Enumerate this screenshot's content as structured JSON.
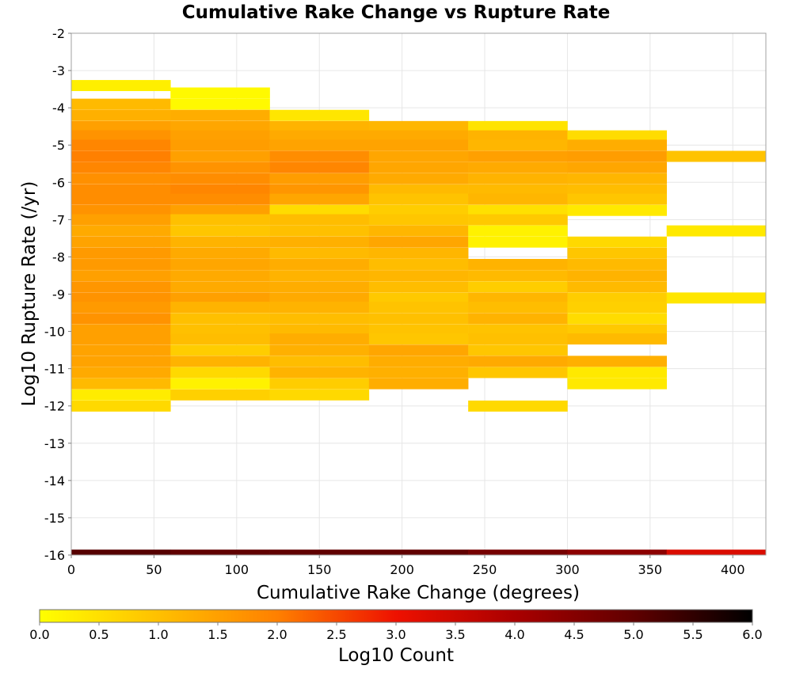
{
  "chart_data": {
    "type": "heatmap",
    "title": "Cumulative Rake Change vs Rupture Rate",
    "xlabel": "Cumulative Rake Change (degrees)",
    "ylabel": "Log10 Rupture Rate (/yr)",
    "xlim": [
      0,
      420
    ],
    "ylim": [
      -16,
      -2
    ],
    "x_ticks": [
      "0",
      "50",
      "100",
      "150",
      "200",
      "250",
      "300",
      "350",
      "400"
    ],
    "y_ticks": [
      "-2",
      "-3",
      "-4",
      "-5",
      "-6",
      "-7",
      "-8",
      "-9",
      "-10",
      "-11",
      "-12",
      "-13",
      "-14",
      "-15",
      "-16"
    ],
    "x_bin_width": 60,
    "y_bin_height": 0.29,
    "colorbar": {
      "label": "Log10 Count",
      "range": [
        0,
        6
      ],
      "ticks": [
        "0.0",
        "0.5",
        "1.0",
        "1.5",
        "2.0",
        "2.5",
        "3.0",
        "3.5",
        "4.0",
        "4.5",
        "5.0",
        "5.5",
        "6.0"
      ],
      "stops": [
        {
          "v": 0.0,
          "color": "#ffff00"
        },
        {
          "v": 1.0,
          "color": "#ffc000"
        },
        {
          "v": 2.0,
          "color": "#ff8000"
        },
        {
          "v": 3.0,
          "color": "#ee1100"
        },
        {
          "v": 4.0,
          "color": "#aa0000"
        },
        {
          "v": 5.0,
          "color": "#600000"
        },
        {
          "v": 6.0,
          "color": "#000000"
        }
      ]
    },
    "columns": [
      {
        "x_start": 0,
        "cells": [
          [
            -3.4,
            0.25
          ],
          [
            -3.9,
            1.1
          ],
          [
            -4.2,
            1.25
          ],
          [
            -4.5,
            1.5
          ],
          [
            -4.75,
            1.7
          ],
          [
            -5.0,
            1.9
          ],
          [
            -5.3,
            2.0
          ],
          [
            -5.6,
            1.9
          ],
          [
            -5.9,
            1.75
          ],
          [
            -6.2,
            1.8
          ],
          [
            -6.45,
            1.8
          ],
          [
            -6.75,
            1.7
          ],
          [
            -7.0,
            1.5
          ],
          [
            -7.3,
            1.35
          ],
          [
            -7.6,
            1.45
          ],
          [
            -7.9,
            1.6
          ],
          [
            -8.2,
            1.6
          ],
          [
            -8.5,
            1.5
          ],
          [
            -8.8,
            1.65
          ],
          [
            -9.1,
            1.7
          ],
          [
            -9.35,
            1.6
          ],
          [
            -9.65,
            1.7
          ],
          [
            -9.95,
            1.5
          ],
          [
            -10.2,
            1.5
          ],
          [
            -10.5,
            1.45
          ],
          [
            -10.8,
            1.45
          ],
          [
            -11.1,
            1.35
          ],
          [
            -11.4,
            1.1
          ],
          [
            -11.7,
            0.3
          ],
          [
            -12.0,
            0.6
          ]
        ]
      },
      {
        "x_start": 60,
        "cells": [
          [
            -3.6,
            0.1
          ],
          [
            -3.9,
            0.1
          ],
          [
            -4.2,
            1.3
          ],
          [
            -4.5,
            1.4
          ],
          [
            -4.75,
            1.5
          ],
          [
            -5.0,
            1.55
          ],
          [
            -5.3,
            1.5
          ],
          [
            -5.6,
            1.7
          ],
          [
            -5.9,
            1.8
          ],
          [
            -6.2,
            1.9
          ],
          [
            -6.45,
            1.8
          ],
          [
            -6.75,
            1.5
          ],
          [
            -7.0,
            1.0
          ],
          [
            -7.3,
            0.9
          ],
          [
            -7.6,
            1.2
          ],
          [
            -7.9,
            1.35
          ],
          [
            -8.2,
            1.4
          ],
          [
            -8.5,
            1.35
          ],
          [
            -8.8,
            1.35
          ],
          [
            -9.1,
            1.5
          ],
          [
            -9.35,
            1.2
          ],
          [
            -9.65,
            1.0
          ],
          [
            -9.95,
            1.0
          ],
          [
            -10.2,
            1.05
          ],
          [
            -10.5,
            0.8
          ],
          [
            -10.8,
            1.2
          ],
          [
            -11.1,
            0.6
          ],
          [
            -11.4,
            0.2
          ],
          [
            -11.7,
            0.75
          ]
        ]
      },
      {
        "x_start": 120,
        "cells": [
          [
            -4.2,
            0.4
          ],
          [
            -4.5,
            1.2
          ],
          [
            -4.75,
            1.35
          ],
          [
            -5.0,
            1.45
          ],
          [
            -5.3,
            1.8
          ],
          [
            -5.6,
            1.9
          ],
          [
            -5.9,
            1.55
          ],
          [
            -6.2,
            1.65
          ],
          [
            -6.45,
            1.4
          ],
          [
            -6.75,
            0.55
          ],
          [
            -7.0,
            1.05
          ],
          [
            -7.3,
            1.0
          ],
          [
            -7.6,
            1.25
          ],
          [
            -7.9,
            1.1
          ],
          [
            -8.2,
            1.3
          ],
          [
            -8.5,
            1.2
          ],
          [
            -8.8,
            1.3
          ],
          [
            -9.1,
            1.35
          ],
          [
            -9.35,
            1.2
          ],
          [
            -9.65,
            1.05
          ],
          [
            -9.95,
            1.1
          ],
          [
            -10.2,
            1.3
          ],
          [
            -10.5,
            1.25
          ],
          [
            -10.8,
            1.05
          ],
          [
            -11.1,
            1.2
          ],
          [
            -11.4,
            0.8
          ],
          [
            -11.7,
            0.6
          ]
        ]
      },
      {
        "x_start": 180,
        "cells": [
          [
            -4.5,
            1.15
          ],
          [
            -4.75,
            1.35
          ],
          [
            -5.0,
            1.45
          ],
          [
            -5.3,
            1.4
          ],
          [
            -5.6,
            1.4
          ],
          [
            -5.9,
            1.35
          ],
          [
            -6.2,
            1.1
          ],
          [
            -6.45,
            0.95
          ],
          [
            -6.75,
            0.8
          ],
          [
            -7.0,
            0.9
          ],
          [
            -7.3,
            1.15
          ],
          [
            -7.6,
            1.4
          ],
          [
            -7.9,
            1.15
          ],
          [
            -8.2,
            1.05
          ],
          [
            -8.5,
            1.15
          ],
          [
            -8.8,
            1.05
          ],
          [
            -9.1,
            0.85
          ],
          [
            -9.35,
            0.95
          ],
          [
            -9.65,
            1.0
          ],
          [
            -9.95,
            0.95
          ],
          [
            -10.2,
            0.9
          ],
          [
            -10.5,
            1.4
          ],
          [
            -10.8,
            1.3
          ],
          [
            -11.1,
            1.25
          ],
          [
            -11.4,
            1.3
          ]
        ]
      },
      {
        "x_start": 240,
        "cells": [
          [
            -4.5,
            0.45
          ],
          [
            -4.75,
            1.2
          ],
          [
            -5.0,
            1.15
          ],
          [
            -5.3,
            1.5
          ],
          [
            -5.6,
            1.35
          ],
          [
            -5.9,
            1.2
          ],
          [
            -6.2,
            1.1
          ],
          [
            -6.45,
            1.15
          ],
          [
            -6.75,
            0.5
          ],
          [
            -7.0,
            0.85
          ],
          [
            -7.3,
            0.2
          ],
          [
            -7.6,
            0.2
          ],
          [
            -8.2,
            1.2
          ],
          [
            -8.5,
            1.1
          ],
          [
            -8.8,
            0.8
          ],
          [
            -9.1,
            1.15
          ],
          [
            -9.35,
            1.05
          ],
          [
            -9.65,
            1.2
          ],
          [
            -9.95,
            0.95
          ],
          [
            -10.2,
            1.0
          ],
          [
            -10.5,
            0.9
          ],
          [
            -10.8,
            1.35
          ],
          [
            -11.1,
            0.9
          ],
          [
            -12.0,
            0.6
          ]
        ]
      },
      {
        "x_start": 300,
        "cells": [
          [
            -4.75,
            0.55
          ],
          [
            -5.0,
            1.3
          ],
          [
            -5.3,
            1.55
          ],
          [
            -5.6,
            1.4
          ],
          [
            -5.9,
            1.15
          ],
          [
            -6.2,
            1.05
          ],
          [
            -6.45,
            0.9
          ],
          [
            -6.75,
            0.35
          ],
          [
            -7.6,
            0.6
          ],
          [
            -7.9,
            0.9
          ],
          [
            -8.2,
            1.1
          ],
          [
            -8.5,
            1.2
          ],
          [
            -8.8,
            1.1
          ],
          [
            -9.1,
            0.8
          ],
          [
            -9.35,
            0.75
          ],
          [
            -9.65,
            0.55
          ],
          [
            -9.95,
            0.85
          ],
          [
            -10.2,
            1.1
          ],
          [
            -10.8,
            1.25
          ],
          [
            -11.1,
            0.35
          ],
          [
            -11.4,
            0.35
          ]
        ]
      },
      {
        "x_start": 360,
        "cells": [
          [
            -5.3,
            0.95
          ],
          [
            -7.3,
            0.35
          ],
          [
            -9.1,
            0.4
          ]
        ]
      }
    ],
    "bottom_row": {
      "y": -16,
      "bins": [
        {
          "x_start": 0,
          "value": 5.1
        },
        {
          "x_start": 60,
          "value": 5.0
        },
        {
          "x_start": 120,
          "value": 5.0
        },
        {
          "x_start": 180,
          "value": 5.0
        },
        {
          "x_start": 240,
          "value": 4.7
        },
        {
          "x_start": 300,
          "value": 4.4
        },
        {
          "x_start": 360,
          "value": 3.3
        }
      ]
    }
  }
}
